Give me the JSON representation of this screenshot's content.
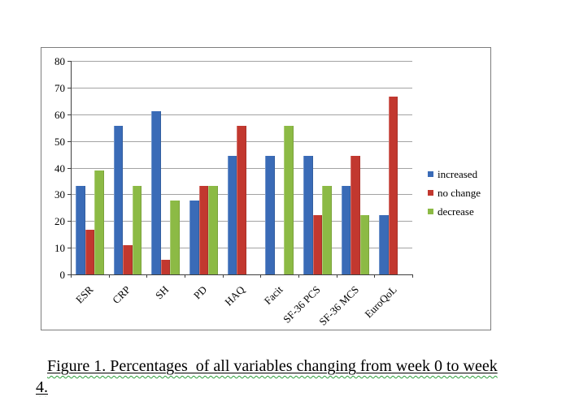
{
  "figure": {
    "caption_line1": "Figure 1. Percentages  of all variables changing from week 0 to week",
    "caption_line2": "4."
  },
  "colors": {
    "series_increased": "#3a6bb7",
    "series_no_change": "#c2382f",
    "series_decrease": "#8cba45",
    "gridline": "#a3a3a3",
    "axis": "#3f3f3f",
    "frame_border": "#7d7d7d",
    "caption_squiggle": "#2e9e3c"
  },
  "chart_data": {
    "type": "bar",
    "categories": [
      "ESR",
      "CRP",
      "SH",
      "PD",
      "HAQ",
      "Facit",
      "SF-36 PCS",
      "SF-36 MCS",
      "EuroQoL"
    ],
    "series": [
      {
        "name": "increased",
        "color": "#3a6bb7",
        "values": [
          33.3,
          55.6,
          61.1,
          27.8,
          44.4,
          44.4,
          44.4,
          33.3,
          22.2
        ]
      },
      {
        "name": "no change",
        "color": "#c2382f",
        "values": [
          16.7,
          11.1,
          5.6,
          33.3,
          55.6,
          0,
          22.2,
          44.4,
          66.7
        ]
      },
      {
        "name": "decrease",
        "color": "#8cba45",
        "values": [
          38.9,
          33.3,
          27.8,
          33.3,
          0,
          55.6,
          33.3,
          22.2,
          0
        ]
      }
    ],
    "title": "",
    "xlabel": "",
    "ylabel": "",
    "ylim": [
      0,
      80
    ],
    "ytick_step": 10,
    "grid": true,
    "legend_position": "right"
  }
}
